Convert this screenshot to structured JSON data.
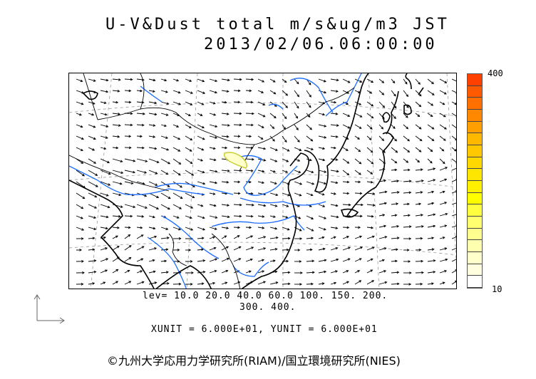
{
  "title": {
    "line1": "U-V&Dust total m/s&ug/m3 JST",
    "line2": "2013/02/06.06:00:00"
  },
  "legend": {
    "levels_line1": "lev= 10.0 20.0 40.0 60.0 100. 150. 200.",
    "levels_line2": "300. 400.",
    "units": "XUNIT = 6.000E+01, YUNIT = 6.000E+01"
  },
  "colorbar": {
    "max_label": "400",
    "min_label": "10",
    "colors_top_to_bottom": [
      "#ff4000",
      "#ff5a00",
      "#ff7000",
      "#ff8800",
      "#ffa000",
      "#ffb800",
      "#ffc800",
      "#ffd800",
      "#ffe600",
      "#fff000",
      "#ffff00",
      "#ffff40",
      "#ffff70",
      "#ffff90",
      "#ffffb0",
      "#ffffcc",
      "#ffffe0",
      "#ffffff"
    ]
  },
  "map": {
    "coastline_color": "#000000",
    "border_color": "#000000",
    "river_color": "#1a6cff",
    "dust_contour_color": "#cccc33",
    "wind_arrow_color": "#000000"
  },
  "copyright": "©九州大学応用力学研究所(RIAM)/国立環境研究所(NIES)"
}
